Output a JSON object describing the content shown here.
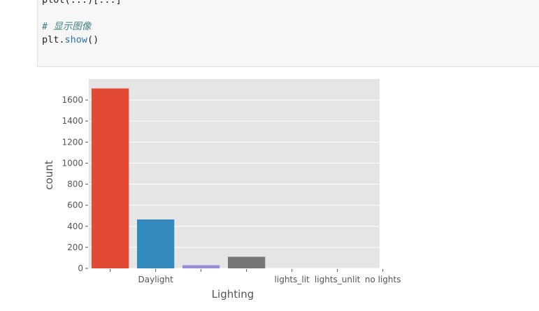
{
  "code_cell": {
    "cut_line": "plot(...)[...]",
    "comment": "# 显示图像",
    "code_prefix": "plt.",
    "code_fn": "show",
    "code_suffix": "()"
  },
  "chart_data": {
    "type": "bar",
    "categories": [
      "",
      "Daylight",
      "",
      "",
      "lights_lit",
      "lights_unlit",
      "no lights"
    ],
    "values": [
      1710,
      465,
      30,
      110,
      0,
      0,
      0
    ],
    "colors": [
      "#e24a33",
      "#348abd",
      "#988ed5",
      "#777777",
      "#fbc15e",
      "#8eba42",
      "#ffb5b8"
    ],
    "xlabel": "Lighting",
    "ylabel": "count",
    "ylim": [
      0,
      1800
    ],
    "yticks": [
      0,
      200,
      400,
      600,
      800,
      1000,
      1200,
      1400,
      1600
    ],
    "grid": true
  }
}
